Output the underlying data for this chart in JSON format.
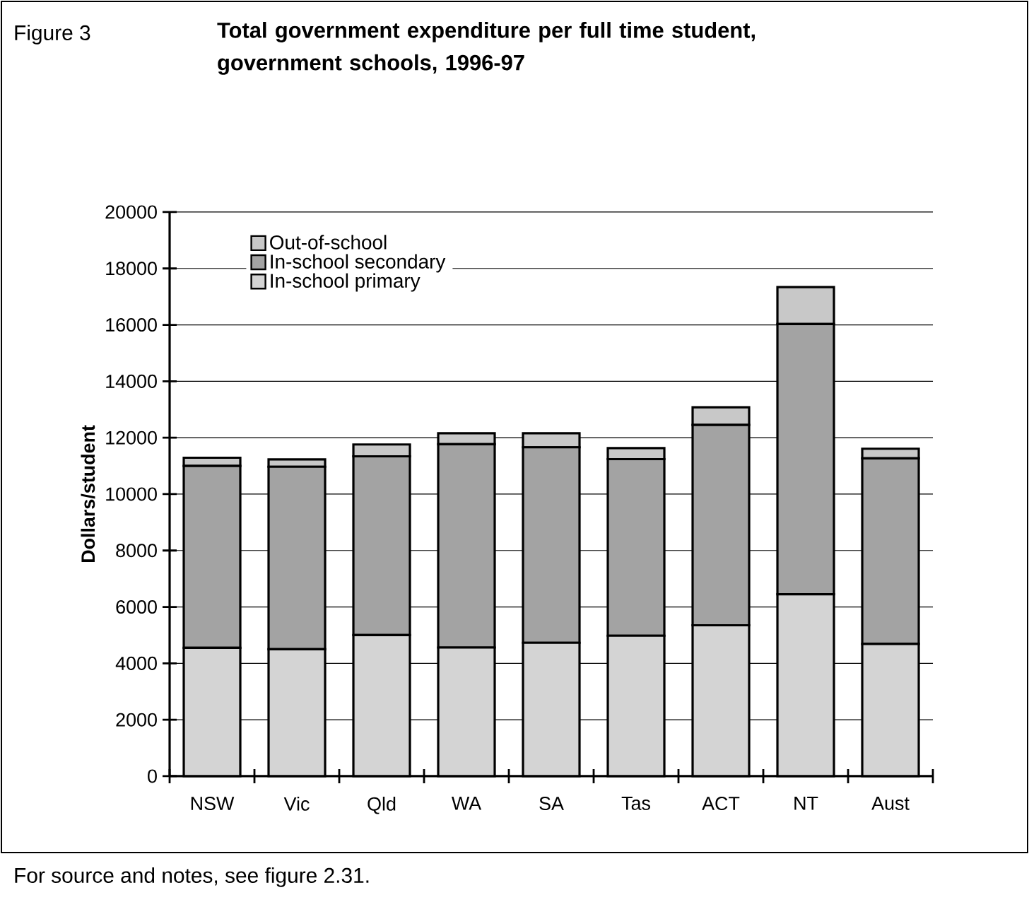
{
  "chart_data": {
    "type": "bar",
    "stacked": true,
    "title": "Total government expenditure per full time student, government schools, 1996-97",
    "ylabel": "Dollars/student",
    "annotations": [
      "Figure 3",
      "For source and notes, see figure 2.31."
    ],
    "categories": [
      "NSW",
      "Vic",
      "Qld",
      "WA",
      "SA",
      "Tas",
      "ACT",
      "NT",
      "Aust"
    ],
    "series": [
      {
        "name": "In-school primary",
        "color": "#d4d4d4",
        "values": [
          4550,
          4500,
          5000,
          4560,
          4730,
          4980,
          5350,
          6450,
          4690
        ]
      },
      {
        "name": "In-school secondary",
        "color": "#a3a3a3",
        "values": [
          6450,
          6470,
          6340,
          7210,
          6930,
          6260,
          7100,
          9580,
          6580
        ]
      },
      {
        "name": "Out-of-school",
        "color": "#c8c8c8",
        "values": [
          290,
          260,
          420,
          390,
          500,
          390,
          630,
          1310,
          340
        ]
      }
    ],
    "ylim": [
      0,
      20000
    ],
    "yticks": [
      0,
      2000,
      4000,
      6000,
      8000,
      10000,
      12000,
      14000,
      16000,
      18000,
      20000
    ],
    "grid": "y",
    "legend": "top left"
  }
}
